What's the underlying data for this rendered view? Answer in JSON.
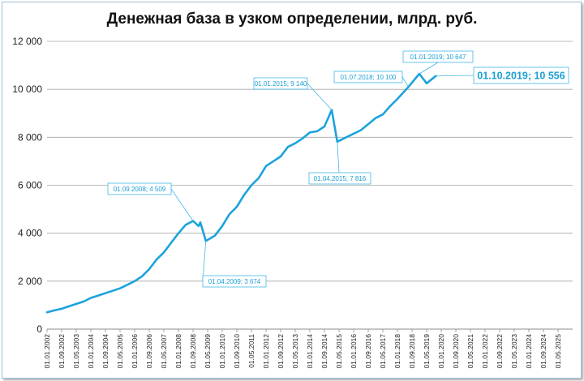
{
  "chart_data": {
    "type": "line",
    "title": "Денежная база в узком определении, млрд. руб.",
    "xlabel": "",
    "ylabel": "",
    "ylim": [
      0,
      12000
    ],
    "y_ticks": [
      0,
      2000,
      4000,
      6000,
      8000,
      10000,
      12000
    ],
    "y_tick_labels": [
      "0",
      "2 000",
      "4 000",
      "6 000",
      "8 000",
      "10 000",
      "12 000"
    ],
    "x_tick_labels": [
      "01.01.2002",
      "01.09.2002",
      "01.05.2003",
      "01.01.2004",
      "01.09.2004",
      "01.05.2005",
      "01.01.2006",
      "01.09.2006",
      "01.05.2007",
      "01.01.2008",
      "01.09.2008",
      "01.05.2009",
      "01.01.2010",
      "01.09.2010",
      "01.05.2011",
      "01.01.2012",
      "01.09.2012",
      "01.05.2013",
      "01.01.2014",
      "01.09.2014",
      "01.05.2015",
      "01.01.2016",
      "01.09.2016",
      "01.05.2017",
      "01.01.2018",
      "01.09.2018",
      "01.05.2019",
      "01.01.2020",
      "01.09.2020",
      "01.05.2021",
      "01.01.2022",
      "01.09.2022",
      "01.05.2023",
      "01.01.2024",
      "01.09.2024",
      "01.05.2025"
    ],
    "grid": true,
    "line_color": "#1ca3dc",
    "series": [
      {
        "x": [
          "01.01.2002",
          "01.05.2002",
          "01.09.2002",
          "01.01.2003",
          "01.05.2003",
          "01.09.2003",
          "01.01.2004",
          "01.05.2004",
          "01.09.2004",
          "01.01.2005",
          "01.05.2005",
          "01.09.2005",
          "01.01.2006",
          "01.05.2006",
          "01.09.2006",
          "01.01.2007",
          "01.05.2007",
          "01.09.2007",
          "01.01.2008",
          "01.05.2008",
          "01.09.2008",
          "01.12.2008",
          "01.01.2009",
          "01.04.2009",
          "01.09.2009",
          "01.01.2010",
          "01.05.2010",
          "01.09.2010",
          "01.01.2011",
          "01.05.2011",
          "01.09.2011",
          "01.01.2012",
          "01.05.2012",
          "01.09.2012",
          "01.01.2013",
          "01.05.2013",
          "01.09.2013",
          "01.01.2014",
          "01.05.2014",
          "01.09.2014",
          "01.01.2015",
          "01.04.2015",
          "01.09.2015",
          "01.01.2016",
          "01.05.2016",
          "01.09.2016",
          "01.01.2017",
          "01.05.2017",
          "01.09.2017",
          "01.01.2018",
          "01.07.2018",
          "01.01.2019",
          "01.05.2019",
          "01.10.2019"
        ],
        "values": [
          700,
          780,
          850,
          950,
          1050,
          1150,
          1300,
          1400,
          1500,
          1600,
          1700,
          1850,
          2000,
          2200,
          2500,
          2900,
          3200,
          3600,
          4000,
          4350,
          4509,
          4300,
          4450,
          3674,
          3900,
          4300,
          4800,
          5100,
          5600,
          6000,
          6300,
          6800,
          7000,
          7200,
          7600,
          7750,
          7950,
          8200,
          8250,
          8450,
          9140,
          7816,
          8000,
          8150,
          8300,
          8550,
          8800,
          8950,
          9300,
          9600,
          10100,
          10647,
          10250,
          10556
        ]
      }
    ],
    "annotations": [
      {
        "label": "01.09.2008; 4 509"
      },
      {
        "label": "01.04.2009; 3 674"
      },
      {
        "label": "01.01.2015; 9 140"
      },
      {
        "label": "01.04.2015; 7 816"
      },
      {
        "label": "01.07.2018; 10 100"
      },
      {
        "label": "01.01.2019; 10 647"
      },
      {
        "label": "01.10.2019; 10 556"
      }
    ]
  }
}
